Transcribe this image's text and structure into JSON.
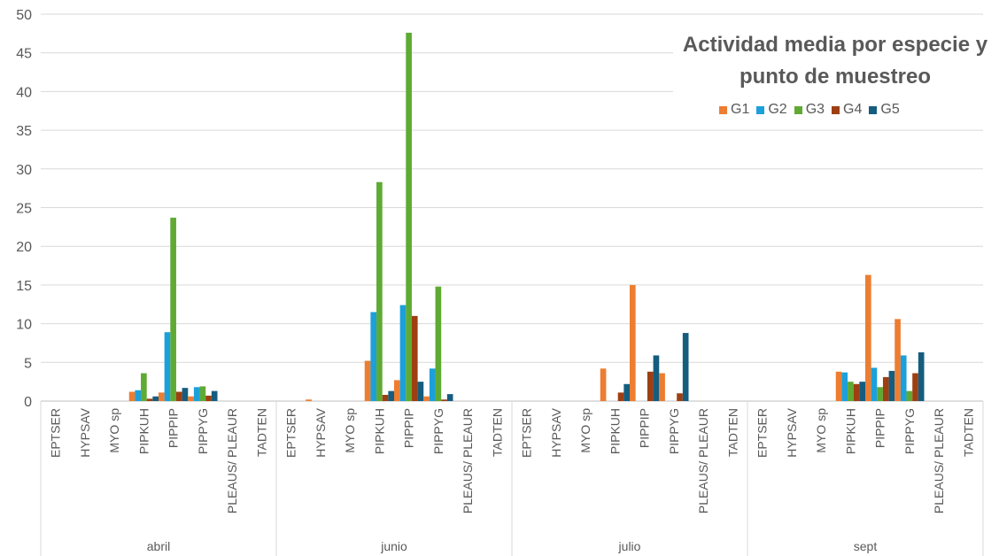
{
  "chart_data": {
    "type": "bar",
    "title": "Actividad media por especie y punto de muestreo",
    "ylim": [
      0,
      50
    ],
    "yticks": [
      0,
      5,
      10,
      15,
      20,
      25,
      30,
      35,
      40,
      45,
      50
    ],
    "grid": true,
    "legend_position": "top-right",
    "groups": [
      "abril",
      "junio",
      "julio",
      "sept"
    ],
    "categories": [
      "EPTSER",
      "HYPSAV",
      "MYO sp",
      "PIPKUH",
      "PIPPIP",
      "PIPPYG",
      "PLEAUS/ PLEAUR",
      "TADTEN"
    ],
    "series": [
      {
        "name": "G1",
        "color": "#ED7D31",
        "values": [
          [
            0,
            0,
            0,
            1.2,
            1.1,
            0.6,
            0,
            0
          ],
          [
            0,
            0.2,
            0,
            5.2,
            2.7,
            0.6,
            0,
            0
          ],
          [
            0,
            0,
            0,
            4.2,
            15.0,
            3.6,
            0,
            0
          ],
          [
            0,
            0,
            0,
            3.8,
            16.3,
            10.6,
            0,
            0
          ]
        ]
      },
      {
        "name": "G2",
        "color": "#1CA0DB",
        "values": [
          [
            0,
            0,
            0,
            1.4,
            8.9,
            1.8,
            0,
            0
          ],
          [
            0,
            0,
            0,
            11.5,
            12.4,
            4.2,
            0,
            0
          ],
          [
            0,
            0,
            0,
            0,
            0,
            0,
            0,
            0
          ],
          [
            0,
            0,
            0,
            3.7,
            4.3,
            5.9,
            0,
            0
          ]
        ]
      },
      {
        "name": "G3",
        "color": "#5FAA33",
        "values": [
          [
            0,
            0,
            0,
            3.6,
            23.7,
            1.9,
            0,
            0
          ],
          [
            0,
            0,
            0,
            28.3,
            47.6,
            14.8,
            0,
            0
          ],
          [
            0,
            0,
            0,
            0,
            0,
            0,
            0,
            0
          ],
          [
            0,
            0,
            0,
            2.5,
            1.8,
            1.3,
            0,
            0
          ]
        ]
      },
      {
        "name": "G4",
        "color": "#9E3F12",
        "values": [
          [
            0,
            0,
            0,
            0.3,
            1.2,
            0.7,
            0,
            0
          ],
          [
            0,
            0,
            0,
            0.8,
            11.0,
            0.2,
            0,
            0
          ],
          [
            0,
            0,
            0,
            1.1,
            3.8,
            1.0,
            0,
            0
          ],
          [
            0,
            0,
            0,
            2.2,
            3.1,
            3.6,
            0,
            0
          ]
        ]
      },
      {
        "name": "G5",
        "color": "#155D7F",
        "values": [
          [
            0,
            0,
            0,
            0.6,
            1.7,
            1.3,
            0,
            0
          ],
          [
            0,
            0,
            0,
            1.3,
            2.5,
            0.9,
            0,
            0
          ],
          [
            0,
            0,
            0,
            2.2,
            5.9,
            8.8,
            0,
            0
          ],
          [
            0,
            0,
            0,
            2.5,
            3.9,
            6.3,
            0,
            0
          ]
        ]
      }
    ]
  }
}
